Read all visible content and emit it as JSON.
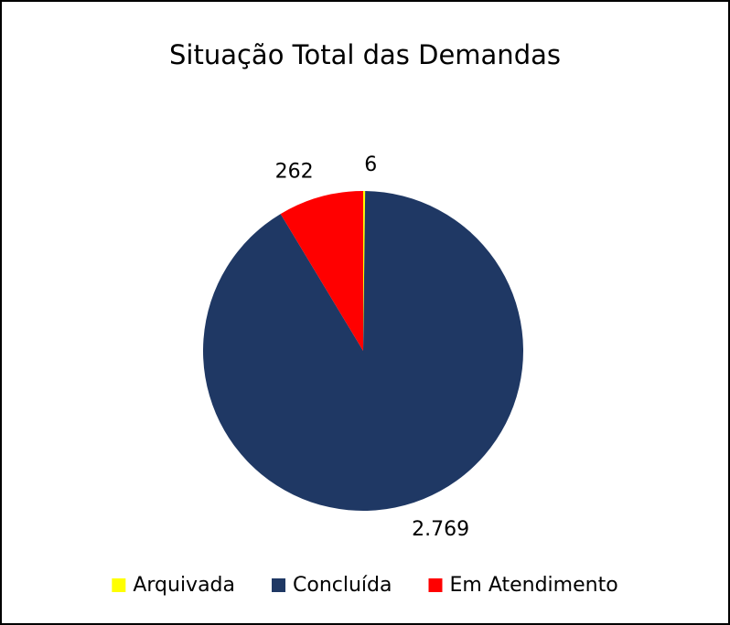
{
  "chart_data": {
    "type": "pie",
    "title": "Situação Total das Demandas",
    "categories": [
      "Arquivada",
      "Concluída",
      "Em Atendimento"
    ],
    "values": [
      6,
      2769,
      262
    ],
    "value_labels": [
      "6",
      "2.769",
      "262"
    ],
    "colors": [
      "#ffff00",
      "#1f3864",
      "#ff0000"
    ],
    "legend": "bottom"
  }
}
